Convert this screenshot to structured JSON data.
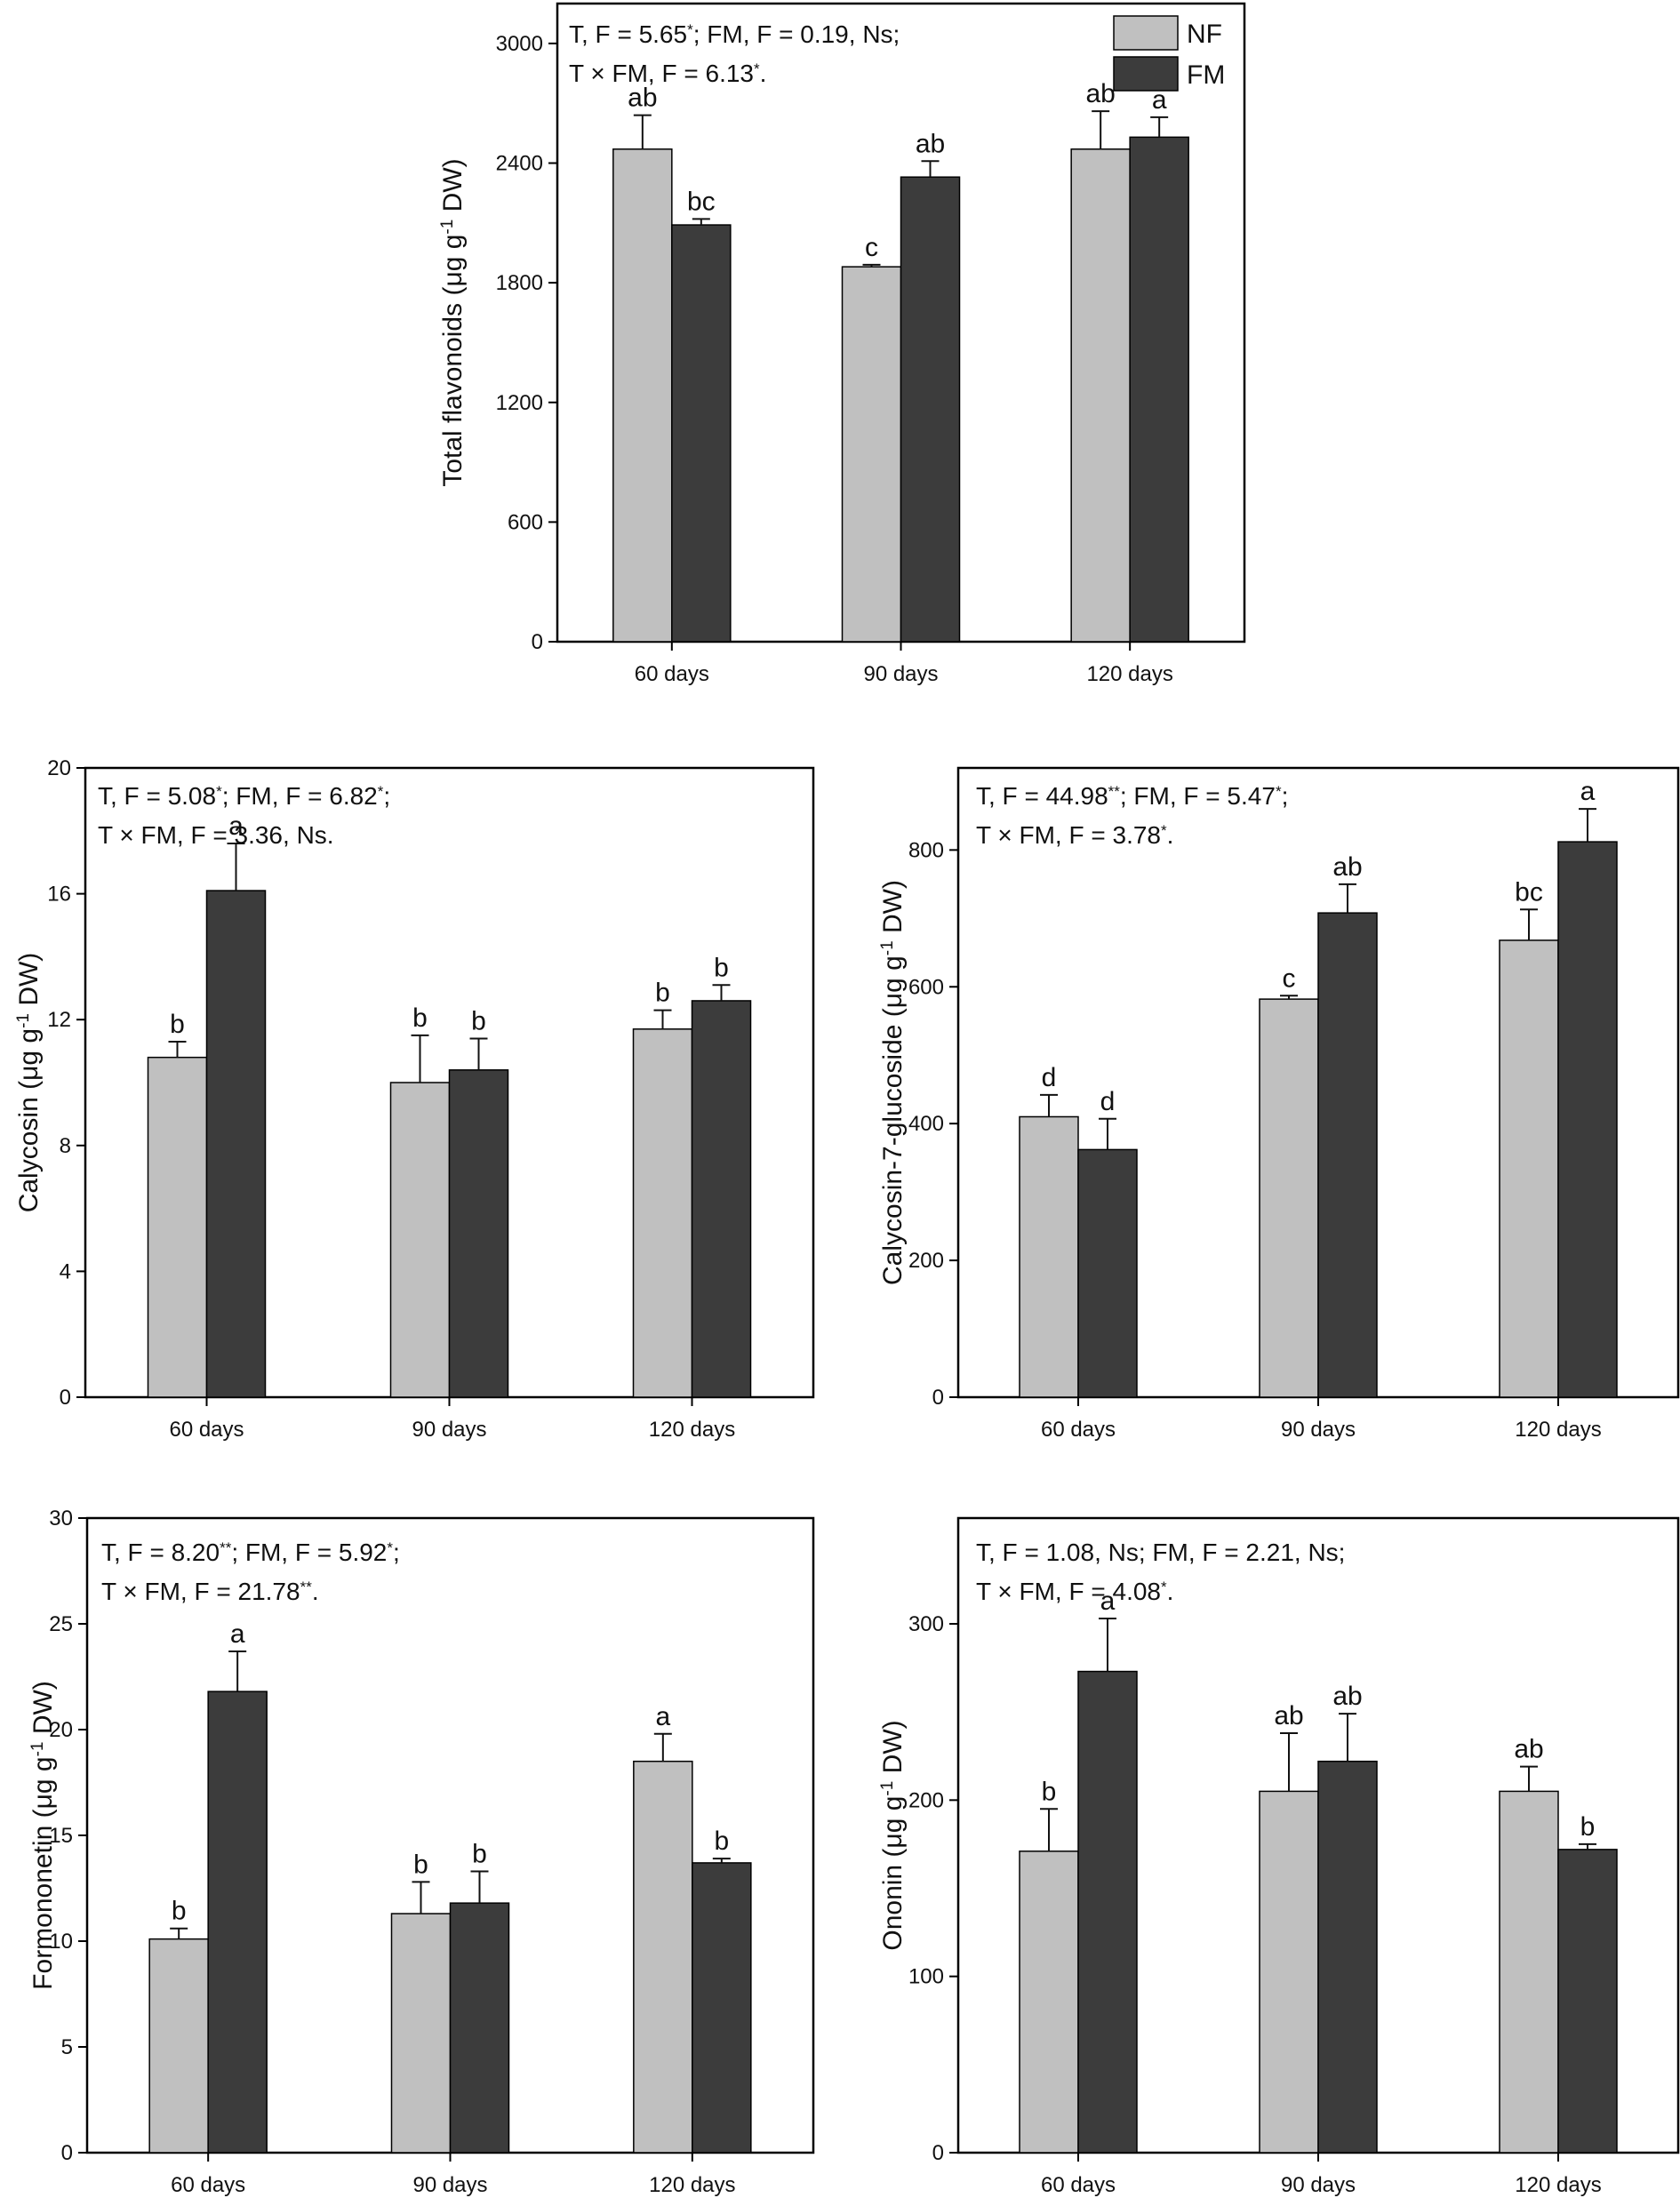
{
  "colors": {
    "NF": "#c0c0c0",
    "FM": "#3c3c3c"
  },
  "legend": [
    {
      "key": "NF",
      "label": "NF"
    },
    {
      "key": "FM",
      "label": "FM"
    }
  ],
  "chart_data": [
    {
      "id": "total-flavonoids",
      "type": "bar",
      "categories": [
        "60 days",
        "90 days",
        "120 days"
      ],
      "series": [
        {
          "name": "NF",
          "values": [
            2470,
            1880,
            2470
          ],
          "errors": [
            170,
            10,
            190
          ],
          "letters": [
            "ab",
            "c",
            "ab"
          ]
        },
        {
          "name": "FM",
          "values": [
            2090,
            2330,
            2530
          ],
          "errors": [
            30,
            80,
            100
          ],
          "letters": [
            "bc",
            "ab",
            "a"
          ]
        }
      ],
      "ylabel": "Total flavonoids (μg g⁻¹ DW)",
      "ylim": [
        0,
        3200
      ],
      "yticks": [
        0,
        600,
        1200,
        1800,
        2400,
        3000
      ],
      "stats": [
        "T, F = 5.65*; FM, F = 0.19, Ns;",
        "T × FM, F = 6.13*."
      ],
      "legend_position": "top-right"
    },
    {
      "id": "calycosin",
      "type": "bar",
      "categories": [
        "60 days",
        "90 days",
        "120 days"
      ],
      "series": [
        {
          "name": "NF",
          "values": [
            10.8,
            10.0,
            11.7
          ],
          "errors": [
            0.5,
            1.5,
            0.6
          ],
          "letters": [
            "b",
            "b",
            "b"
          ]
        },
        {
          "name": "FM",
          "values": [
            16.1,
            10.4,
            12.6
          ],
          "errors": [
            1.5,
            1.0,
            0.5
          ],
          "letters": [
            "a",
            "b",
            "b"
          ]
        }
      ],
      "ylabel": "Calycosin (μg g⁻¹ DW)",
      "ylim": [
        0,
        20
      ],
      "yticks": [
        0,
        4,
        8,
        12,
        16,
        20
      ],
      "stats": [
        "T, F = 5.08*; FM, F = 6.82*;",
        "T × FM, F = 3.36, Ns."
      ]
    },
    {
      "id": "calycosin-7-glucoside",
      "type": "bar",
      "categories": [
        "60 days",
        "90 days",
        "120 days"
      ],
      "series": [
        {
          "name": "NF",
          "values": [
            410,
            582,
            668
          ],
          "errors": [
            32,
            5,
            45
          ],
          "letters": [
            "d",
            "c",
            "bc"
          ]
        },
        {
          "name": "FM",
          "values": [
            362,
            708,
            812
          ],
          "errors": [
            45,
            42,
            48
          ],
          "letters": [
            "d",
            "ab",
            "a"
          ]
        }
      ],
      "ylabel": "Calycosin-7-glucoside (μg g⁻¹ DW)",
      "ylim": [
        0,
        920
      ],
      "yticks": [
        0,
        200,
        400,
        600,
        800
      ],
      "stats": [
        "T, F = 44.98**; FM, F = 5.47*;",
        "T × FM, F = 3.78*."
      ]
    },
    {
      "id": "formononetin",
      "type": "bar",
      "categories": [
        "60 days",
        "90 days",
        "120 days"
      ],
      "series": [
        {
          "name": "NF",
          "values": [
            10.1,
            11.3,
            18.5
          ],
          "errors": [
            0.5,
            1.5,
            1.3
          ],
          "letters": [
            "b",
            "b",
            "a"
          ]
        },
        {
          "name": "FM",
          "values": [
            21.8,
            11.8,
            13.7
          ],
          "errors": [
            1.9,
            1.5,
            0.2
          ],
          "letters": [
            "a",
            "b",
            "b"
          ]
        }
      ],
      "ylabel": "Formononetin (μg g⁻¹ DW)",
      "ylim": [
        0,
        30
      ],
      "yticks": [
        0,
        5,
        10,
        15,
        20,
        25,
        30
      ],
      "stats": [
        "T, F = 8.20**; FM, F = 5.92*;",
        "T × FM, F = 21.78**."
      ]
    },
    {
      "id": "ononin",
      "type": "bar",
      "categories": [
        "60 days",
        "90 days",
        "120 days"
      ],
      "series": [
        {
          "name": "NF",
          "values": [
            171,
            205,
            205
          ],
          "errors": [
            24,
            33,
            14
          ],
          "letters": [
            "b",
            "ab",
            "ab"
          ]
        },
        {
          "name": "FM",
          "values": [
            273,
            222,
            172
          ],
          "errors": [
            30,
            27,
            3
          ],
          "letters": [
            "a",
            "ab",
            "b"
          ]
        }
      ],
      "ylabel": "Ononin (μg g⁻¹ DW)",
      "ylim": [
        0,
        360
      ],
      "yticks": [
        0,
        100,
        200,
        300
      ],
      "stats": [
        "T, F = 1.08, Ns; FM, F = 2.21, Ns;",
        "T × FM, F = 4.08*."
      ]
    }
  ]
}
